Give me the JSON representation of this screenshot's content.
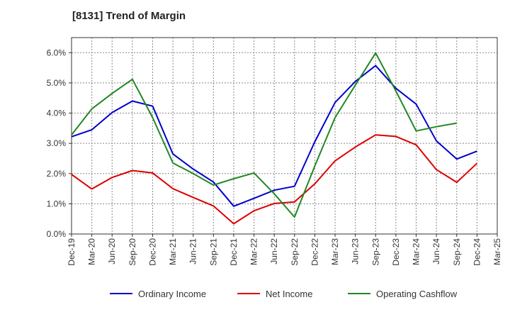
{
  "chart_data": {
    "type": "line",
    "title": "[8131]  Trend of Margin",
    "xlabel": "",
    "ylabel": "",
    "categories": [
      "Dec-19",
      "Mar-20",
      "Jun-20",
      "Sep-20",
      "Dec-20",
      "Mar-21",
      "Jun-21",
      "Sep-21",
      "Dec-21",
      "Mar-22",
      "Jun-22",
      "Sep-22",
      "Dec-22",
      "Mar-23",
      "Jun-23",
      "Sep-23",
      "Dec-23",
      "Mar-24",
      "Jun-24",
      "Sep-24",
      "Dec-24",
      "Mar-25"
    ],
    "ylim": [
      0,
      6.5
    ],
    "yticks": [
      0.0,
      1.0,
      2.0,
      3.0,
      4.0,
      5.0,
      6.0
    ],
    "ytick_labels": [
      "0.0%",
      "1.0%",
      "2.0%",
      "3.0%",
      "4.0%",
      "5.0%",
      "6.0%"
    ],
    "grid": true,
    "legend_position": "bottom",
    "series": [
      {
        "name": "Ordinary Income",
        "color": "#0000cc",
        "values": [
          3.22,
          3.45,
          4.02,
          4.4,
          4.23,
          2.65,
          2.15,
          1.72,
          0.92,
          1.18,
          1.45,
          1.58,
          3.05,
          4.35,
          5.05,
          5.57,
          4.82,
          4.3,
          3.08,
          2.48,
          2.74,
          null
        ]
      },
      {
        "name": "Net Income",
        "color": "#dd0000",
        "values": [
          1.97,
          1.49,
          1.87,
          2.1,
          2.02,
          1.5,
          1.21,
          0.93,
          0.34,
          0.77,
          1.01,
          1.06,
          1.66,
          2.42,
          2.88,
          3.28,
          3.23,
          2.95,
          2.13,
          1.71,
          2.34,
          null
        ]
      },
      {
        "name": "Operating Cashflow",
        "color": "#228822",
        "values": [
          3.28,
          4.14,
          4.65,
          5.12,
          3.85,
          2.35,
          2.0,
          1.62,
          1.83,
          2.02,
          1.33,
          0.56,
          2.25,
          3.85,
          4.93,
          5.99,
          4.73,
          3.41,
          3.55,
          3.67,
          null,
          null
        ]
      }
    ]
  }
}
